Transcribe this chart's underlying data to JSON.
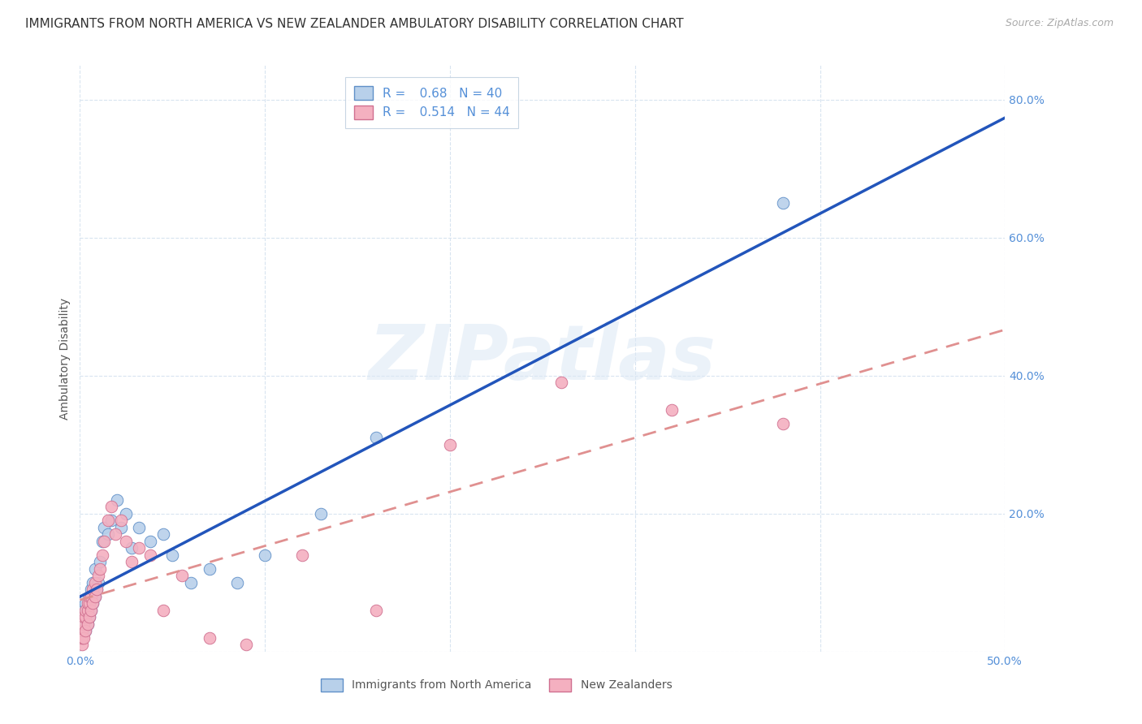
{
  "title": "IMMIGRANTS FROM NORTH AMERICA VS NEW ZEALANDER AMBULATORY DISABILITY CORRELATION CHART",
  "source": "Source: ZipAtlas.com",
  "ylabel": "Ambulatory Disability",
  "xlim": [
    0.0,
    0.5
  ],
  "ylim": [
    0.0,
    0.85
  ],
  "xticks": [
    0.0,
    0.1,
    0.2,
    0.3,
    0.4,
    0.5
  ],
  "yticks": [
    0.0,
    0.2,
    0.4,
    0.6,
    0.8
  ],
  "ytick_labels": [
    "",
    "20.0%",
    "40.0%",
    "60.0%",
    "80.0%"
  ],
  "xtick_labels": [
    "0.0%",
    "",
    "",
    "",
    "",
    "50.0%"
  ],
  "blue_R": 0.68,
  "blue_N": 40,
  "pink_R": 0.514,
  "pink_N": 44,
  "blue_fill": "#b8d0ea",
  "blue_edge": "#6090c8",
  "pink_fill": "#f4b0c0",
  "pink_edge": "#d07090",
  "blue_line": "#2255bb",
  "pink_line": "#e09090",
  "axis_color": "#5590d8",
  "grid_color": "#d8e4f0",
  "bg": "#ffffff",
  "blue_scatter_x": [
    0.001,
    0.001,
    0.002,
    0.002,
    0.002,
    0.003,
    0.003,
    0.003,
    0.004,
    0.004,
    0.005,
    0.005,
    0.006,
    0.006,
    0.007,
    0.007,
    0.008,
    0.008,
    0.009,
    0.01,
    0.011,
    0.012,
    0.013,
    0.015,
    0.017,
    0.02,
    0.022,
    0.025,
    0.028,
    0.032,
    0.038,
    0.045,
    0.05,
    0.06,
    0.07,
    0.085,
    0.1,
    0.13,
    0.16,
    0.38
  ],
  "blue_scatter_y": [
    0.02,
    0.03,
    0.04,
    0.05,
    0.06,
    0.03,
    0.05,
    0.07,
    0.04,
    0.06,
    0.05,
    0.08,
    0.06,
    0.09,
    0.07,
    0.1,
    0.08,
    0.12,
    0.09,
    0.1,
    0.13,
    0.16,
    0.18,
    0.17,
    0.19,
    0.22,
    0.18,
    0.2,
    0.15,
    0.18,
    0.16,
    0.17,
    0.14,
    0.1,
    0.12,
    0.1,
    0.14,
    0.2,
    0.31,
    0.65
  ],
  "pink_scatter_x": [
    0.001,
    0.001,
    0.001,
    0.002,
    0.002,
    0.002,
    0.003,
    0.003,
    0.003,
    0.004,
    0.004,
    0.004,
    0.005,
    0.005,
    0.005,
    0.006,
    0.006,
    0.007,
    0.007,
    0.008,
    0.008,
    0.009,
    0.01,
    0.011,
    0.012,
    0.013,
    0.015,
    0.017,
    0.019,
    0.022,
    0.025,
    0.028,
    0.032,
    0.038,
    0.045,
    0.055,
    0.07,
    0.09,
    0.12,
    0.16,
    0.2,
    0.26,
    0.32,
    0.38
  ],
  "pink_scatter_y": [
    0.01,
    0.02,
    0.03,
    0.02,
    0.04,
    0.05,
    0.03,
    0.05,
    0.06,
    0.04,
    0.06,
    0.07,
    0.05,
    0.07,
    0.08,
    0.06,
    0.08,
    0.07,
    0.09,
    0.08,
    0.1,
    0.09,
    0.11,
    0.12,
    0.14,
    0.16,
    0.19,
    0.21,
    0.17,
    0.19,
    0.16,
    0.13,
    0.15,
    0.14,
    0.06,
    0.11,
    0.02,
    0.01,
    0.14,
    0.06,
    0.3,
    0.39,
    0.35,
    0.33
  ],
  "watermark_text": "ZIPatlas",
  "title_fontsize": 11,
  "tick_fontsize": 10,
  "legend_fontsize": 11,
  "ylabel_fontsize": 10
}
